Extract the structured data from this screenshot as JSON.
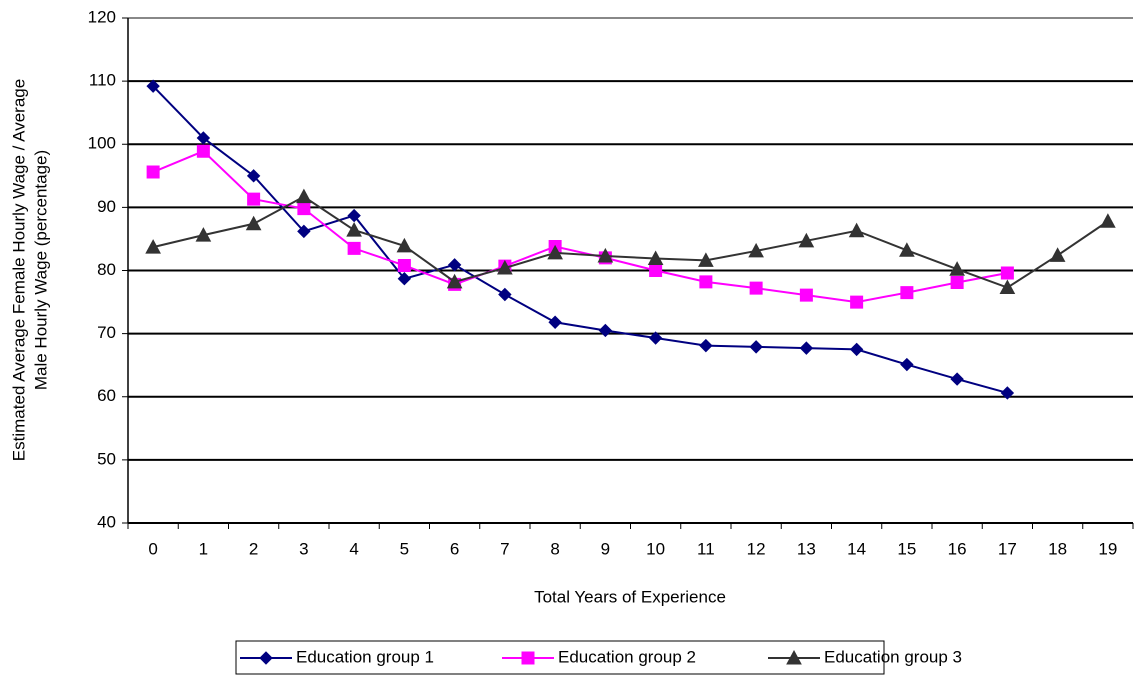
{
  "chart_data": {
    "type": "line",
    "ylabel": [
      "Estimated Average Female Hourly Wage / Average",
      "Male Hourly Wage (percentage)"
    ],
    "xlabel": "Total Years of Experience",
    "categories": [
      "0",
      "1",
      "2",
      "3",
      "4",
      "5",
      "6",
      "7",
      "8",
      "9",
      "10",
      "11",
      "12",
      "13",
      "14",
      "15",
      "16",
      "17",
      "18",
      "19"
    ],
    "series": [
      {
        "name": "Education group 1",
        "color": "#000080",
        "marker": "diamond",
        "values": [
          109.2,
          101,
          95,
          86.2,
          88.7,
          78.7,
          80.9,
          76.2,
          71.8,
          70.5,
          69.3,
          68.1,
          67.9,
          67.7,
          67.5,
          65.1,
          62.8,
          60.6,
          null,
          null
        ]
      },
      {
        "name": "Education group 2",
        "color": "#ff00ff",
        "marker": "square",
        "values": [
          95.6,
          98.9,
          91.3,
          89.8,
          83.5,
          80.8,
          77.8,
          80.7,
          83.8,
          82,
          80,
          78.2,
          77.2,
          76.1,
          75,
          76.5,
          78.1,
          79.6,
          null,
          null
        ]
      },
      {
        "name": "Education group 3",
        "color": "#333333",
        "marker": "triangle",
        "values": [
          83.7,
          85.6,
          87.4,
          91.7,
          86.4,
          83.9,
          78.2,
          80.4,
          82.8,
          82.3,
          81.9,
          81.6,
          83.1,
          84.7,
          86.3,
          83.2,
          80.2,
          77.3,
          82.4,
          87.8
        ]
      }
    ],
    "ylim": [
      40,
      120
    ],
    "yticks": [
      40,
      50,
      60,
      70,
      80,
      90,
      100,
      110,
      120
    ],
    "grid": true,
    "legend": "bottom"
  }
}
